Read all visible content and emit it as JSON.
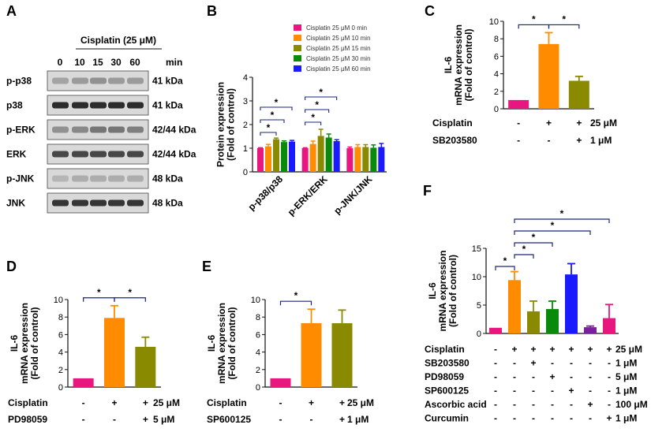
{
  "panels": {
    "A": {
      "letter": "A",
      "treatment": "Cisplatin (25 μM)",
      "times": [
        "0",
        "10",
        "15",
        "30",
        "60"
      ],
      "time_unit": "min",
      "blots": [
        {
          "protein": "p-p38",
          "size": "41 kDa",
          "intensities": [
            0.25,
            0.3,
            0.35,
            0.3,
            0.3
          ]
        },
        {
          "protein": "p38",
          "size": "41 kDa",
          "intensities": [
            0.9,
            0.9,
            0.9,
            0.9,
            0.9
          ]
        },
        {
          "protein": "p-ERK",
          "size": "42/44 kDa",
          "intensities": [
            0.35,
            0.4,
            0.5,
            0.5,
            0.45
          ]
        },
        {
          "protein": "ERK",
          "size": "42/44 kDa",
          "intensities": [
            0.75,
            0.75,
            0.75,
            0.75,
            0.75
          ]
        },
        {
          "protein": "p-JNK",
          "size": "48 kDa",
          "intensities": [
            0.15,
            0.2,
            0.2,
            0.2,
            0.2
          ]
        },
        {
          "protein": "JNK",
          "size": "48 kDa",
          "intensities": [
            0.85,
            0.85,
            0.85,
            0.85,
            0.85
          ]
        }
      ]
    },
    "B": {
      "letter": "B"
    },
    "C": {
      "letter": "C",
      "rows": [
        {
          "label": "Cisplatin",
          "signs": [
            "-",
            "+",
            "+"
          ],
          "conc": "25 μM"
        },
        {
          "label": "SB203580",
          "signs": [
            "-",
            "-",
            "+"
          ],
          "conc": "1  μM"
        }
      ]
    },
    "D": {
      "letter": "D",
      "rows": [
        {
          "label": "Cisplatin",
          "signs": [
            "-",
            "+",
            "+"
          ],
          "conc": "25 μM"
        },
        {
          "label": "PD98059",
          "signs": [
            "-",
            "-",
            "+"
          ],
          "conc": "5  μM"
        }
      ]
    },
    "E": {
      "letter": "E",
      "rows": [
        {
          "label": "Cisplatin",
          "signs": [
            "-",
            "+",
            "+"
          ],
          "conc": "25 μM"
        },
        {
          "label": "SP600125",
          "signs": [
            "-",
            "-",
            "+"
          ],
          "conc": "1  μM"
        }
      ]
    },
    "F": {
      "letter": "F",
      "rows": [
        {
          "label": "Cisplatin",
          "signs": [
            "-",
            "+",
            "+",
            "+",
            "+",
            "+",
            "+"
          ],
          "conc": "25 μM"
        },
        {
          "label": "SB203580",
          "signs": [
            "-",
            "-",
            "+",
            "-",
            "-",
            "-",
            "-"
          ],
          "conc": "1 μM"
        },
        {
          "label": "PD98059",
          "signs": [
            "-",
            "-",
            "-",
            "+",
            "-",
            "-",
            "-"
          ],
          "conc": "5 μM"
        },
        {
          "label": "SP600125",
          "signs": [
            "-",
            "-",
            "-",
            "-",
            "+",
            "-",
            "-"
          ],
          "conc": "1 μM"
        },
        {
          "label": "Ascorbic acid",
          "signs": [
            "-",
            "-",
            "-",
            "-",
            "-",
            "+",
            "-"
          ],
          "conc": "100 μM"
        },
        {
          "label": "Curcumin",
          "signs": [
            "-",
            "-",
            "-",
            "-",
            "-",
            "-",
            "+"
          ],
          "conc": "1 μM"
        }
      ]
    }
  },
  "chart_data": [
    {
      "panel": "B",
      "type": "bar",
      "ylabel": "Protein expression\n(Fold of control)",
      "ylim": [
        0,
        4
      ],
      "yticks": [
        0,
        1,
        2,
        3,
        4
      ],
      "categories": [
        "p-p38/p38",
        "p-ERK/ERK",
        "p-JNK/JNK"
      ],
      "series": [
        {
          "name": "Cisplatin 25 μM 0 min",
          "color": "#e8177f",
          "values": [
            1.0,
            1.0,
            1.0
          ],
          "errors": [
            0.02,
            0.02,
            0.05
          ]
        },
        {
          "name": "Cisplatin 25 μM 10 min",
          "color": "#ff8c00",
          "values": [
            1.08,
            1.18,
            1.05
          ],
          "errors": [
            0.08,
            0.12,
            0.1
          ]
        },
        {
          "name": "Cisplatin 25 μM 15 min",
          "color": "#8a8a00",
          "values": [
            1.38,
            1.52,
            1.05
          ],
          "errors": [
            0.05,
            0.28,
            0.1
          ]
        },
        {
          "name": "Cisplatin 25 μM 30 min",
          "color": "#0a8a0a",
          "values": [
            1.26,
            1.45,
            1.02
          ],
          "errors": [
            0.05,
            0.15,
            0.12
          ]
        },
        {
          "name": "Cisplatin 25 μM 60 min",
          "color": "#1a1aff",
          "values": [
            1.28,
            1.3,
            1.05
          ],
          "errors": [
            0.05,
            0.06,
            0.15
          ]
        }
      ],
      "significance": [
        {
          "group": 0,
          "from": 0,
          "to": 2,
          "label": "*"
        },
        {
          "group": 0,
          "from": 0,
          "to": 3,
          "label": "*"
        },
        {
          "group": 0,
          "from": 0,
          "to": 4,
          "label": "*"
        },
        {
          "group": 1,
          "from": 0,
          "to": 2,
          "label": "*"
        },
        {
          "group": 1,
          "from": 0,
          "to": 3,
          "label": "*"
        },
        {
          "group": 1,
          "from": 0,
          "to": 4,
          "label": "*"
        }
      ]
    },
    {
      "panel": "C",
      "type": "bar",
      "ylabel": "IL-6\nmRNA expression\n(Fold of control)",
      "ylim": [
        0,
        10
      ],
      "yticks": [
        0,
        2,
        4,
        6,
        8,
        10
      ],
      "values": [
        1.0,
        7.4,
        3.2
      ],
      "errors": [
        0,
        1.3,
        0.5
      ],
      "colors": [
        "#e8177f",
        "#ff8c00",
        "#8a8a00"
      ],
      "significance": [
        {
          "from": 0,
          "to": 1,
          "label": "*"
        },
        {
          "from": 1,
          "to": 2,
          "label": "*"
        }
      ]
    },
    {
      "panel": "D",
      "type": "bar",
      "ylabel": "IL-6\nmRNA expression\n(Fold of control)",
      "ylim": [
        0,
        10
      ],
      "yticks": [
        0,
        2,
        4,
        6,
        8,
        10
      ],
      "values": [
        1.0,
        7.9,
        4.6
      ],
      "errors": [
        0,
        1.4,
        1.1
      ],
      "colors": [
        "#e8177f",
        "#ff8c00",
        "#8a8a00"
      ],
      "significance": [
        {
          "from": 0,
          "to": 1,
          "label": "*"
        },
        {
          "from": 1,
          "to": 2,
          "label": "*"
        }
      ]
    },
    {
      "panel": "E",
      "type": "bar",
      "ylabel": "IL-6\nmRNA expression\n(Fold of control)",
      "ylim": [
        0,
        10
      ],
      "yticks": [
        0,
        2,
        4,
        6,
        8,
        10
      ],
      "values": [
        1.0,
        7.3,
        7.3
      ],
      "errors": [
        0,
        1.6,
        1.5
      ],
      "colors": [
        "#e8177f",
        "#ff8c00",
        "#8a8a00"
      ],
      "significance": [
        {
          "from": 0,
          "to": 1,
          "label": "*"
        }
      ]
    },
    {
      "panel": "F",
      "type": "bar",
      "ylabel": "IL-6\nmRNA expression\n(Fold of control)",
      "ylim": [
        0,
        15
      ],
      "yticks": [
        0,
        5,
        10,
        15
      ],
      "values": [
        1.0,
        9.4,
        3.9,
        4.3,
        10.4,
        1.1,
        2.7
      ],
      "errors": [
        0,
        1.5,
        1.8,
        1.4,
        1.9,
        0.2,
        2.4
      ],
      "colors": [
        "#e8177f",
        "#ff8c00",
        "#8a8a00",
        "#0a8a0a",
        "#1a1aff",
        "#7b1fa2",
        "#e8177f"
      ],
      "significance": [
        {
          "from": 0,
          "to": 1,
          "label": "*"
        },
        {
          "from": 1,
          "to": 2,
          "label": "*"
        },
        {
          "from": 1,
          "to": 3,
          "label": "*"
        },
        {
          "from": 1,
          "to": 5,
          "label": "*"
        },
        {
          "from": 1,
          "to": 6,
          "label": "*"
        }
      ]
    }
  ]
}
